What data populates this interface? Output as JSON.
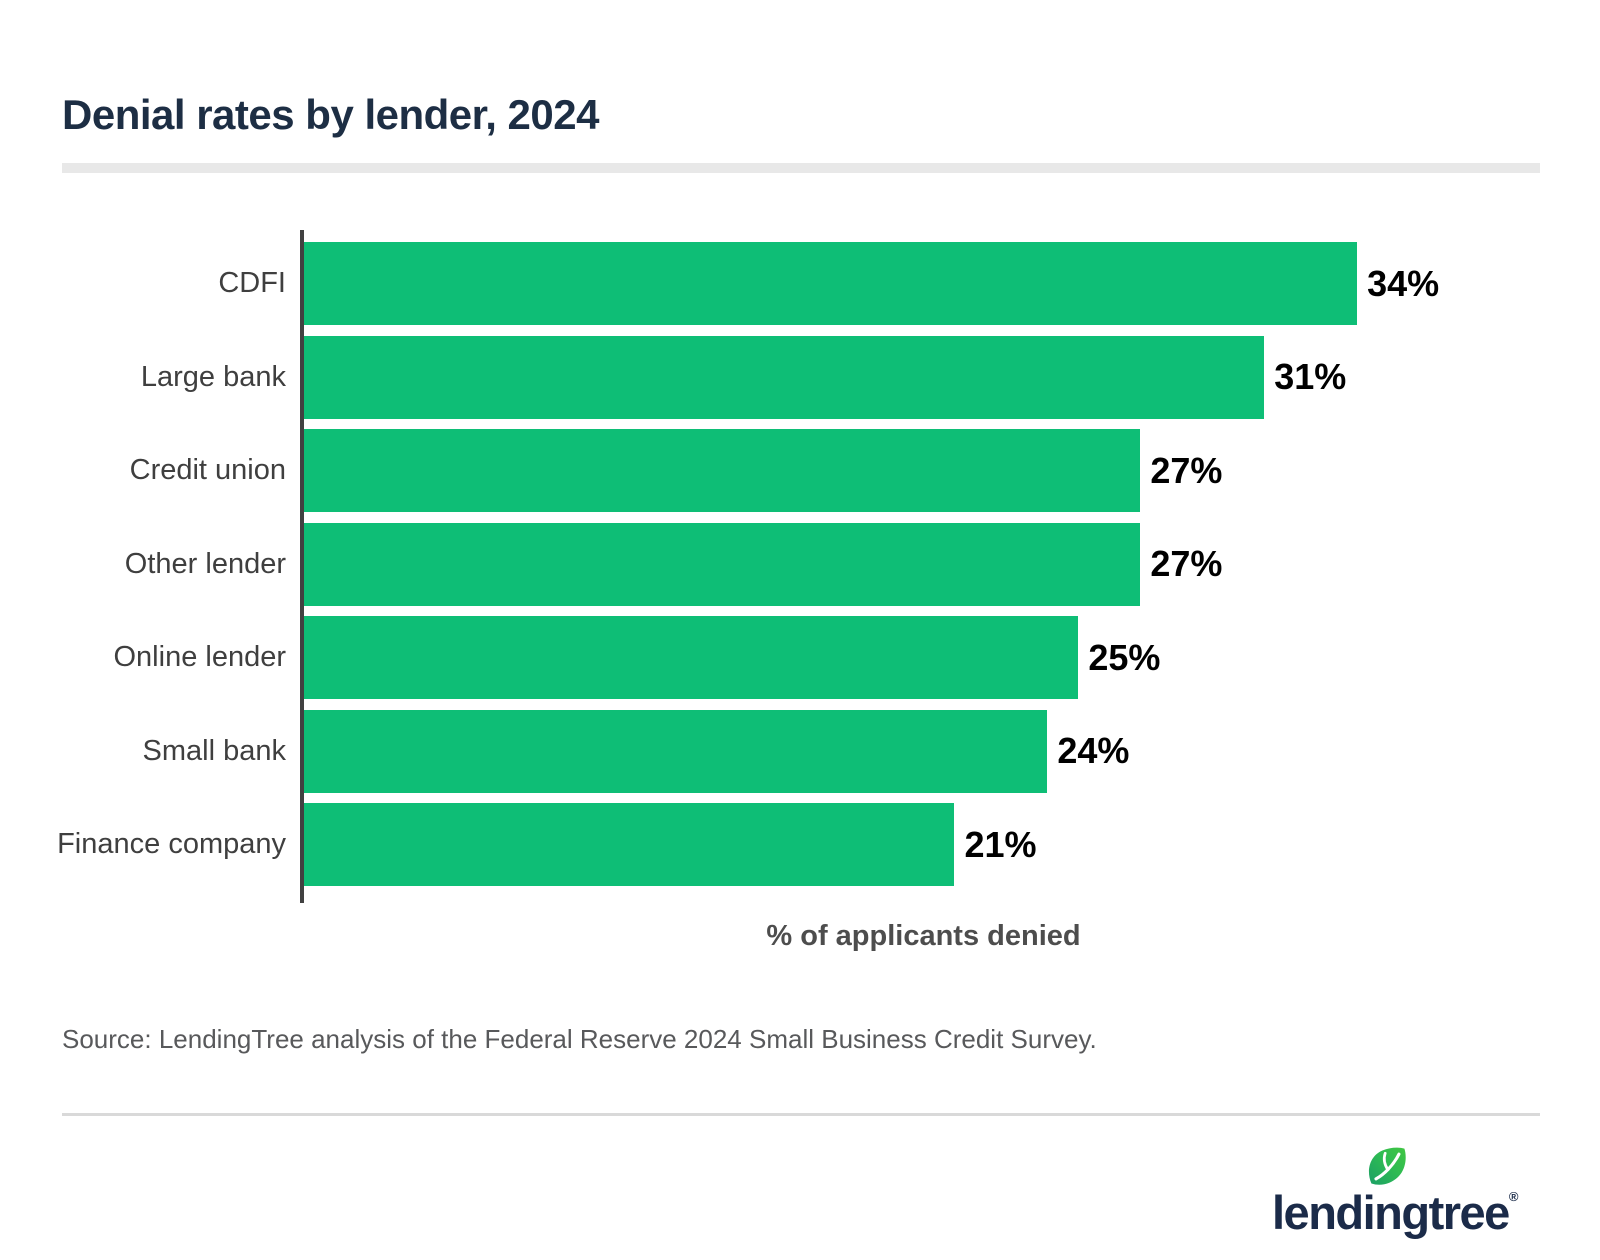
{
  "page": {
    "source": "Source: LendingTree analysis of the Federal Reserve 2024 Small Business Credit Survey.",
    "brand": {
      "logo_text": "lendingtree",
      "registered_mark": "®",
      "navy": "#1b2b49",
      "leaf_green_dark": "#17996a",
      "leaf_green_light": "#45c83f"
    }
  },
  "chart_data": {
    "type": "bar",
    "orientation": "horizontal",
    "title": "Denial rates by lender, 2024",
    "categories": [
      "CDFI",
      "Large bank",
      "Credit union",
      "Other lender",
      "Online lender",
      "Small bank",
      "Finance company"
    ],
    "values": [
      34,
      31,
      27,
      27,
      25,
      24,
      21
    ],
    "value_labels": [
      "34%",
      "31%",
      "27%",
      "27%",
      "25%",
      "24%",
      "21%"
    ],
    "xlabel": "% of applicants denied",
    "ylabel": "",
    "xlim": [
      0,
      40
    ],
    "grid": false,
    "legend": false,
    "bar_color": "#0ebe76",
    "axis_color": "#414141",
    "category_label_color": "#3f3f3f",
    "value_label_color": "#000000"
  }
}
